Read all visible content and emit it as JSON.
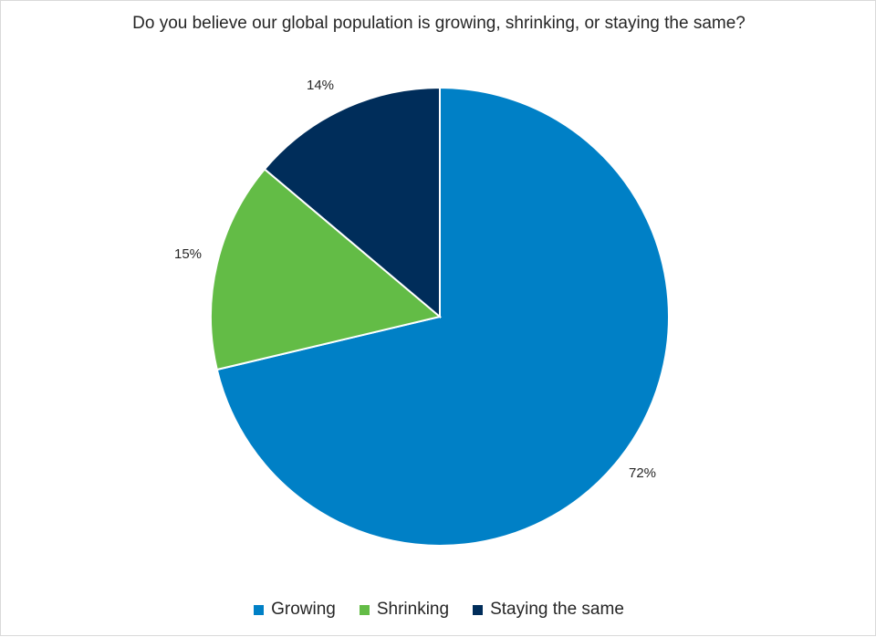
{
  "chart_data": {
    "type": "pie",
    "title": "Do you believe our global population is growing, shrinking, or staying the same?",
    "categories": [
      "Growing",
      "Shrinking",
      "Staying the same"
    ],
    "values": [
      72,
      15,
      14
    ],
    "labels": [
      "72%",
      "15%",
      "14%"
    ],
    "colors": [
      "#0080c6",
      "#63bc46",
      "#002d5a"
    ],
    "legend_position": "bottom",
    "start_angle_deg": 0,
    "direction": "clockwise"
  }
}
